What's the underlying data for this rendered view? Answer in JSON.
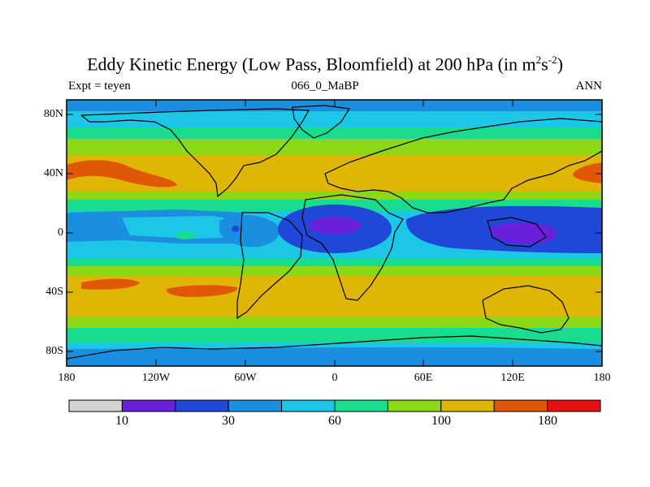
{
  "title": {
    "main": "Eddy Kinetic Energy (Low Pass, Bloomfield) at 200 hPa (in m",
    "sup1": "2",
    "mid": "s",
    "sup2": "-2",
    "end": ")"
  },
  "left_label": "Expt = teyen",
  "center_label": "066_0_MaBP",
  "right_label": "ANN",
  "axes": {
    "y_ticks": [
      "80N",
      "40N",
      "0",
      "40S",
      "80S"
    ],
    "x_ticks": [
      "180",
      "120W",
      "60W",
      "0",
      "60E",
      "120E",
      "180"
    ]
  },
  "colorbar": {
    "colors": [
      "#d3d3d3",
      "#6a1fd8",
      "#1f47d8",
      "#1c8ee0",
      "#1cc6e6",
      "#18dc8e",
      "#8ad816",
      "#e0b606",
      "#e05806",
      "#e61010"
    ],
    "labels": [
      "10",
      "30",
      "60",
      "100",
      "180"
    ]
  }
}
